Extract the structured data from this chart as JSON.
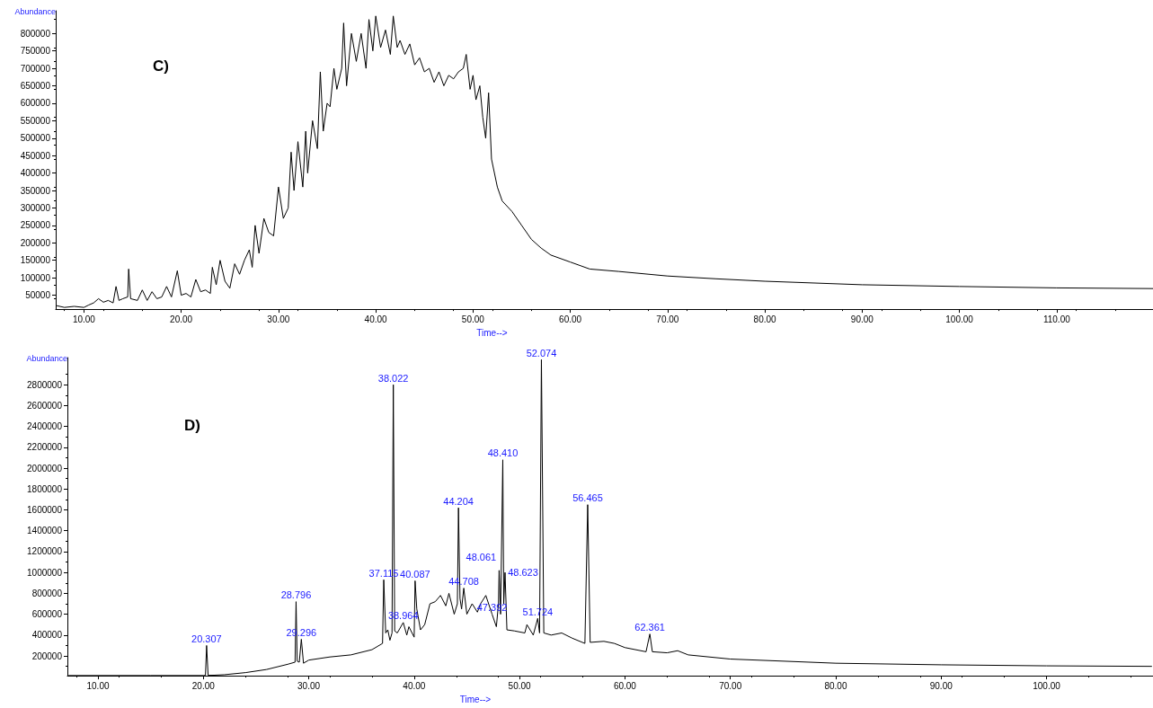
{
  "chart_data": [
    {
      "type": "line",
      "xlabel": "Time-->",
      "ylabel": "Abundance",
      "annotations": [
        "C)"
      ],
      "grid": false,
      "marker": "none",
      "line_style": "solid",
      "xlim": [
        7.1,
        119.9
      ],
      "ylim": [
        10000,
        865000
      ],
      "xticks": [
        {
          "value": 10,
          "label": "10.00"
        },
        {
          "value": 20,
          "label": "20.00"
        },
        {
          "value": 30,
          "label": "30.00"
        },
        {
          "value": 40,
          "label": "40.00"
        },
        {
          "value": 50,
          "label": "50.00"
        },
        {
          "value": 60,
          "label": "60.00"
        },
        {
          "value": 70,
          "label": "70.00"
        },
        {
          "value": 80,
          "label": "80.00"
        },
        {
          "value": 90,
          "label": "90.00"
        },
        {
          "value": 100,
          "label": "100.00"
        },
        {
          "value": 110,
          "label": "110.00"
        }
      ],
      "yticks": [
        50000,
        100000,
        150000,
        200000,
        250000,
        300000,
        350000,
        400000,
        450000,
        500000,
        550000,
        600000,
        650000,
        700000,
        750000,
        800000
      ],
      "series": [
        {
          "color": "#000000",
          "x": [
            7.2,
            8,
            9,
            10,
            10.5,
            11,
            11.5,
            12,
            12.5,
            13,
            13.3,
            13.6,
            14,
            14.5,
            14.6,
            14.8,
            15.5,
            16,
            16.5,
            17,
            17.5,
            18,
            18.5,
            19,
            19.6,
            20,
            20.5,
            21,
            21.5,
            22,
            22.5,
            23,
            23.2,
            23.6,
            24,
            24.5,
            25,
            25.5,
            26,
            26.5,
            27,
            27.3,
            27.6,
            28,
            28.5,
            29,
            29.5,
            30,
            30.5,
            31,
            31.3,
            31.6,
            32,
            32.5,
            32.8,
            33,
            33.5,
            34,
            34.3,
            34.6,
            35,
            35.3,
            35.7,
            36,
            36.5,
            36.7,
            37,
            37.5,
            38,
            38.5,
            39,
            39.3,
            39.7,
            40,
            40.5,
            41,
            41.5,
            41.8,
            42.2,
            42.5,
            43,
            43.5,
            44,
            44.5,
            45,
            45.5,
            46,
            46.5,
            47,
            47.5,
            48,
            48.5,
            49,
            49.3,
            49.7,
            50,
            50.3,
            50.7,
            51,
            51.3,
            51.6,
            51.9,
            52.5,
            53,
            54,
            55,
            56,
            57,
            58,
            60,
            62,
            65,
            70,
            75,
            80,
            90,
            100,
            110,
            119.9
          ],
          "values": [
            20000,
            15000,
            18000,
            15000,
            22000,
            28000,
            40000,
            30000,
            35000,
            28000,
            75000,
            35000,
            40000,
            45000,
            125000,
            40000,
            35000,
            65000,
            35000,
            60000,
            40000,
            45000,
            75000,
            45000,
            120000,
            50000,
            55000,
            45000,
            95000,
            60000,
            65000,
            55000,
            130000,
            80000,
            150000,
            90000,
            70000,
            140000,
            110000,
            150000,
            180000,
            130000,
            250000,
            170000,
            270000,
            230000,
            220000,
            360000,
            270000,
            300000,
            460000,
            350000,
            490000,
            360000,
            520000,
            400000,
            550000,
            470000,
            690000,
            520000,
            600000,
            590000,
            700000,
            640000,
            700000,
            830000,
            650000,
            800000,
            720000,
            800000,
            700000,
            840000,
            750000,
            850000,
            760000,
            810000,
            740000,
            850000,
            760000,
            780000,
            740000,
            770000,
            710000,
            730000,
            690000,
            700000,
            660000,
            690000,
            650000,
            680000,
            670000,
            690000,
            700000,
            740000,
            640000,
            680000,
            610000,
            650000,
            560000,
            500000,
            630000,
            440000,
            360000,
            320000,
            290000,
            250000,
            210000,
            185000,
            165000,
            145000,
            125000,
            118000,
            105000,
            97000,
            90000,
            80000,
            75000,
            71000,
            69000
          ]
        }
      ]
    },
    {
      "type": "line",
      "xlabel": "Time-->",
      "ylabel": "Abundance",
      "grid": false,
      "marker": "none",
      "line_style": "solid",
      "annotations": [
        "D)",
        {
          "text": "20.307",
          "x": 20.307,
          "y": 300000
        },
        {
          "text": "28.796",
          "x": 28.796,
          "y": 720000
        },
        {
          "text": "29.296",
          "x": 29.296,
          "y": 360000
        },
        {
          "text": "37.115",
          "x": 37.115,
          "y": 930000
        },
        {
          "text": "38.022",
          "x": 38.022,
          "y": 2800000
        },
        {
          "text": "38.964",
          "x": 38.964,
          "y": 520000
        },
        {
          "text": "40.087",
          "x": 40.087,
          "y": 920000
        },
        {
          "text": "44.204",
          "x": 44.204,
          "y": 1620000
        },
        {
          "text": "44.708",
          "x": 44.708,
          "y": 850000
        },
        {
          "text": "47.392",
          "x": 47.392,
          "y": 600000
        },
        {
          "text": "48.061",
          "x": 48.061,
          "y": 1020000
        },
        {
          "text": "48.410",
          "x": 48.41,
          "y": 2080000
        },
        {
          "text": "48.623",
          "x": 48.623,
          "y": 1000000
        },
        {
          "text": "51.724",
          "x": 51.724,
          "y": 560000
        },
        {
          "text": "52.074",
          "x": 52.074,
          "y": 3040000
        },
        {
          "text": "56.465",
          "x": 56.465,
          "y": 1650000
        },
        {
          "text": "62.361",
          "x": 62.361,
          "y": 410000
        }
      ],
      "xlim": [
        7.1,
        110.1
      ],
      "ylim": [
        10000,
        3060000
      ],
      "xticks": [
        {
          "value": 10,
          "label": "10.00"
        },
        {
          "value": 20,
          "label": "20.00"
        },
        {
          "value": 30,
          "label": "30.00"
        },
        {
          "value": 40,
          "label": "40.00"
        },
        {
          "value": 50,
          "label": "50.00"
        },
        {
          "value": 60,
          "label": "60.00"
        },
        {
          "value": 70,
          "label": "70.00"
        },
        {
          "value": 80,
          "label": "80.00"
        },
        {
          "value": 90,
          "label": "90.00"
        },
        {
          "value": 100,
          "label": "100.00"
        }
      ],
      "yticks": [
        200000,
        400000,
        600000,
        800000,
        1000000,
        1200000,
        1400000,
        1600000,
        1800000,
        2000000,
        2200000,
        2400000,
        2600000,
        2800000
      ],
      "series": [
        {
          "color": "#000000",
          "x": [
            7.2,
            10,
            15,
            20,
            20.2,
            20.307,
            20.45,
            21,
            22,
            24,
            26,
            28,
            28.7,
            28.796,
            28.9,
            29.1,
            29.296,
            29.5,
            30,
            32,
            34,
            36,
            37,
            37.115,
            37.3,
            37.5,
            37.7,
            37.9,
            38.022,
            38.15,
            38.4,
            38.964,
            39.3,
            39.5,
            40,
            40.087,
            40.25,
            40.6,
            41,
            41.5,
            42,
            42.5,
            43,
            43.3,
            43.8,
            44.1,
            44.204,
            44.35,
            44.5,
            44.708,
            45,
            45.5,
            46,
            46.3,
            46.8,
            47.392,
            47.8,
            48,
            48.061,
            48.2,
            48.41,
            48.5,
            48.623,
            48.8,
            49.5,
            50.5,
            50.7,
            51.3,
            51.724,
            51.9,
            52.074,
            52.3,
            53,
            54,
            55,
            56.2,
            56.465,
            56.7,
            58,
            59,
            60,
            62,
            62.361,
            62.6,
            64,
            65,
            66,
            70,
            80,
            90,
            100,
            110
          ],
          "values": [
            12000,
            12000,
            12000,
            12000,
            14000,
            300000,
            14000,
            15000,
            20000,
            40000,
            70000,
            120000,
            140000,
            720000,
            150000,
            140000,
            360000,
            130000,
            160000,
            190000,
            210000,
            260000,
            320000,
            930000,
            420000,
            450000,
            350000,
            420000,
            2800000,
            440000,
            420000,
            520000,
            400000,
            480000,
            380000,
            920000,
            650000,
            450000,
            500000,
            700000,
            720000,
            780000,
            680000,
            800000,
            600000,
            700000,
            1620000,
            750000,
            650000,
            850000,
            600000,
            700000,
            620000,
            700000,
            780000,
            600000,
            480000,
            700000,
            1020000,
            600000,
            2080000,
            700000,
            1000000,
            450000,
            440000,
            420000,
            500000,
            400000,
            560000,
            420000,
            3040000,
            420000,
            400000,
            420000,
            370000,
            320000,
            1650000,
            330000,
            340000,
            320000,
            280000,
            240000,
            410000,
            240000,
            230000,
            250000,
            210000,
            170000,
            130000,
            115000,
            105000,
            100000
          ]
        }
      ]
    }
  ]
}
